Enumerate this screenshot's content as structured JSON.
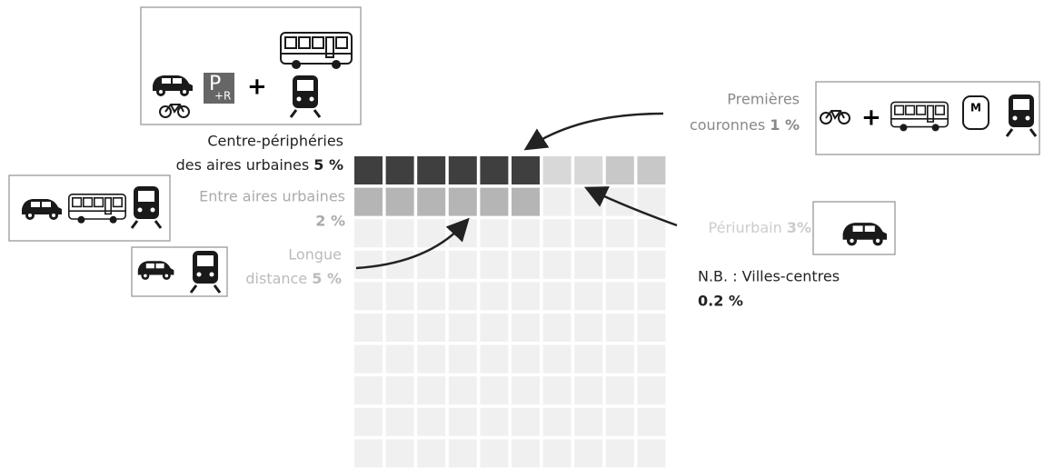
{
  "labels": {
    "centre_peripheries": {
      "line1": "Centre-périphéries",
      "line2": "des aires urbaines",
      "share": "5 %"
    },
    "entre_aires": {
      "line1": "Entre aires urbaines",
      "share": "2 %"
    },
    "longue_distance": {
      "line1": "Longue",
      "line2": "distance",
      "share": "5 %"
    },
    "premieres_couronnes": {
      "line1": "Premières",
      "line2": "couronnes",
      "share": "1 %"
    },
    "periurbain": {
      "line1": "Périurbain",
      "share": "3%"
    },
    "note": {
      "line1": "N.B. : Villes-centres",
      "share": "0.2 %"
    }
  },
  "park_ride": {
    "p": "P",
    "r": "+R"
  },
  "metro_sign": "M",
  "plus": "+"
}
